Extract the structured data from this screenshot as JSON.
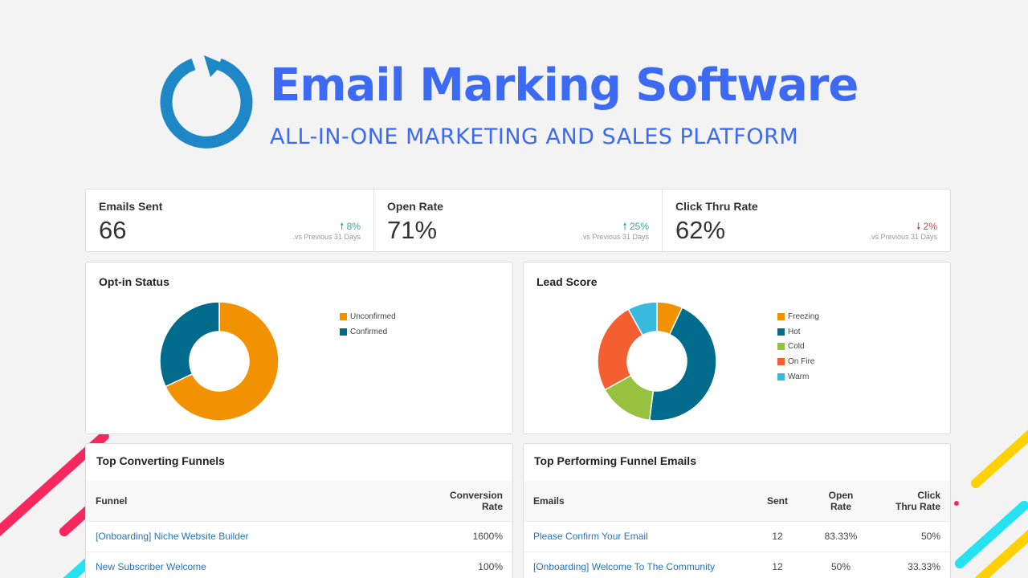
{
  "header": {
    "title": "Email Marking Software",
    "subtitle": "ALL-IN-ONE MARKETING AND SALES PLATFORM",
    "logo_icon": "refresh-ring-icon",
    "brand_color": "#3d6af2"
  },
  "stats": [
    {
      "label": "Emails Sent",
      "value": "66",
      "change": "8%",
      "direction": "up",
      "note": ".vs Previous 31 Days"
    },
    {
      "label": "Open Rate",
      "value": "71%",
      "change": "25%",
      "direction": "up",
      "note": ".vs Previous 31 Days"
    },
    {
      "label": "Click Thru Rate",
      "value": "62%",
      "change": "2%",
      "direction": "down",
      "note": ".vs Previous 31 Days"
    }
  ],
  "optin": {
    "title": "Opt-in Status",
    "legend": [
      {
        "label": "Unconfirmed",
        "color": "#f39200",
        "fraction": 0.68
      },
      {
        "label": "Confirmed",
        "color": "#006b8a",
        "fraction": 0.32
      }
    ]
  },
  "lead": {
    "title": "Lead Score",
    "legend": [
      {
        "label": "Freezing",
        "color": "#f39200",
        "fraction": 0.07
      },
      {
        "label": "Hot",
        "color": "#006b8a",
        "fraction": 0.45
      },
      {
        "label": "Cold",
        "color": "#97c23f",
        "fraction": 0.15
      },
      {
        "label": "On Fire",
        "color": "#f45f31",
        "fraction": 0.25
      },
      {
        "label": "Warm",
        "color": "#3ab9de",
        "fraction": 0.08
      }
    ]
  },
  "funnels": {
    "title": "Top Converting Funnels",
    "col_funnel": "Funnel",
    "col_conversion_1": "Conversion",
    "col_conversion_2": "Rate",
    "rows": [
      {
        "name": "[Onboarding] Niche Website Builder",
        "rate": "1600%"
      },
      {
        "name": "New Subscriber Welcome",
        "rate": "100%"
      }
    ]
  },
  "emails": {
    "title": "Top Performing Funnel Emails",
    "col_emails": "Emails",
    "col_sent": "Sent",
    "col_open_1": "Open",
    "col_open_2": "Rate",
    "col_click_1": "Click",
    "col_click_2": "Thru Rate",
    "rows": [
      {
        "name": "Please Confirm Your Email",
        "sent": "12",
        "open": "83.33%",
        "click": "50%"
      },
      {
        "name": "[Onboarding] Welcome To The Community",
        "sent": "12",
        "open": "50%",
        "click": "33.33%"
      }
    ]
  }
}
